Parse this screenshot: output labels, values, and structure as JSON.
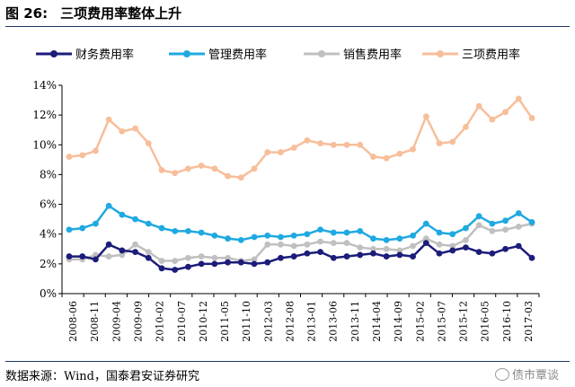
{
  "figure": {
    "number": "图 26:",
    "title": "三项费用率整体上升",
    "source": "数据来源：Wind，国泰君安证券研究",
    "watermark": "债市覃谈"
  },
  "chart_data": {
    "type": "line",
    "ylim": [
      0,
      14
    ],
    "y_ticks": [
      "0%",
      "2%",
      "4%",
      "6%",
      "8%",
      "10%",
      "12%",
      "14%"
    ],
    "x_tick_labels": [
      "2008-06",
      "2008-11",
      "2009-04",
      "2009-09",
      "2010-02",
      "2010-07",
      "2010-12",
      "2011-05",
      "2011-10",
      "2012-03",
      "2012-08",
      "2013-01",
      "2013-06",
      "2013-11",
      "2014-04",
      "2014-09",
      "2015-02",
      "2015-07",
      "2015-12",
      "2016-05",
      "2016-10",
      "2017-03"
    ],
    "x": [
      "2008-06",
      "2008-09",
      "2008-12",
      "2009-03",
      "2009-06",
      "2009-09",
      "2009-12",
      "2010-03",
      "2010-06",
      "2010-09",
      "2010-12",
      "2011-03",
      "2011-06",
      "2011-09",
      "2011-12",
      "2012-03",
      "2012-06",
      "2012-09",
      "2012-12",
      "2013-03",
      "2013-06",
      "2013-09",
      "2013-12",
      "2014-03",
      "2014-06",
      "2014-09",
      "2014-12",
      "2015-03",
      "2015-06",
      "2015-09",
      "2015-12",
      "2016-03",
      "2016-06",
      "2016-09",
      "2016-12",
      "2017-03"
    ],
    "legend_position": "top",
    "grid": false,
    "series": [
      {
        "name": "财务费用率",
        "color": "#1c1c7a",
        "values": [
          2.5,
          2.5,
          2.3,
          3.3,
          2.9,
          2.8,
          2.4,
          1.7,
          1.6,
          1.8,
          2.0,
          2.0,
          2.1,
          2.1,
          2.0,
          2.1,
          2.4,
          2.5,
          2.7,
          2.8,
          2.4,
          2.5,
          2.6,
          2.7,
          2.5,
          2.6,
          2.5,
          3.4,
          2.7,
          2.9,
          3.1,
          2.8,
          2.7,
          3.0,
          3.2,
          2.4
        ]
      },
      {
        "name": "管理费用率",
        "color": "#1fa9e1",
        "values": [
          4.3,
          4.4,
          4.7,
          5.9,
          5.3,
          5.0,
          4.7,
          4.4,
          4.2,
          4.2,
          4.1,
          3.9,
          3.7,
          3.6,
          3.8,
          3.9,
          3.8,
          3.9,
          4.0,
          4.3,
          4.1,
          4.1,
          4.2,
          3.7,
          3.6,
          3.7,
          3.9,
          4.7,
          4.1,
          4.0,
          4.4,
          5.2,
          4.7,
          4.9,
          5.4,
          4.8
        ]
      },
      {
        "name": "销售费用率",
        "color": "#c0c0c0",
        "values": [
          2.3,
          2.3,
          2.6,
          2.5,
          2.6,
          3.3,
          2.8,
          2.2,
          2.2,
          2.4,
          2.5,
          2.4,
          2.4,
          2.2,
          2.3,
          3.3,
          3.3,
          3.2,
          3.3,
          3.5,
          3.4,
          3.4,
          3.1,
          3.0,
          3.0,
          2.9,
          3.2,
          3.7,
          3.3,
          3.2,
          3.6,
          4.6,
          4.2,
          4.3,
          4.5,
          4.7
        ]
      },
      {
        "name": "三项费用率",
        "color": "#f7be9a",
        "values": [
          9.2,
          9.3,
          9.6,
          11.7,
          10.9,
          11.1,
          10.1,
          8.3,
          8.1,
          8.4,
          8.6,
          8.4,
          7.9,
          7.8,
          8.4,
          9.5,
          9.5,
          9.8,
          10.3,
          10.1,
          10.0,
          10.0,
          10.0,
          9.2,
          9.1,
          9.4,
          9.7,
          11.9,
          10.1,
          10.2,
          11.2,
          12.6,
          11.7,
          12.2,
          13.1,
          11.8
        ]
      }
    ]
  }
}
